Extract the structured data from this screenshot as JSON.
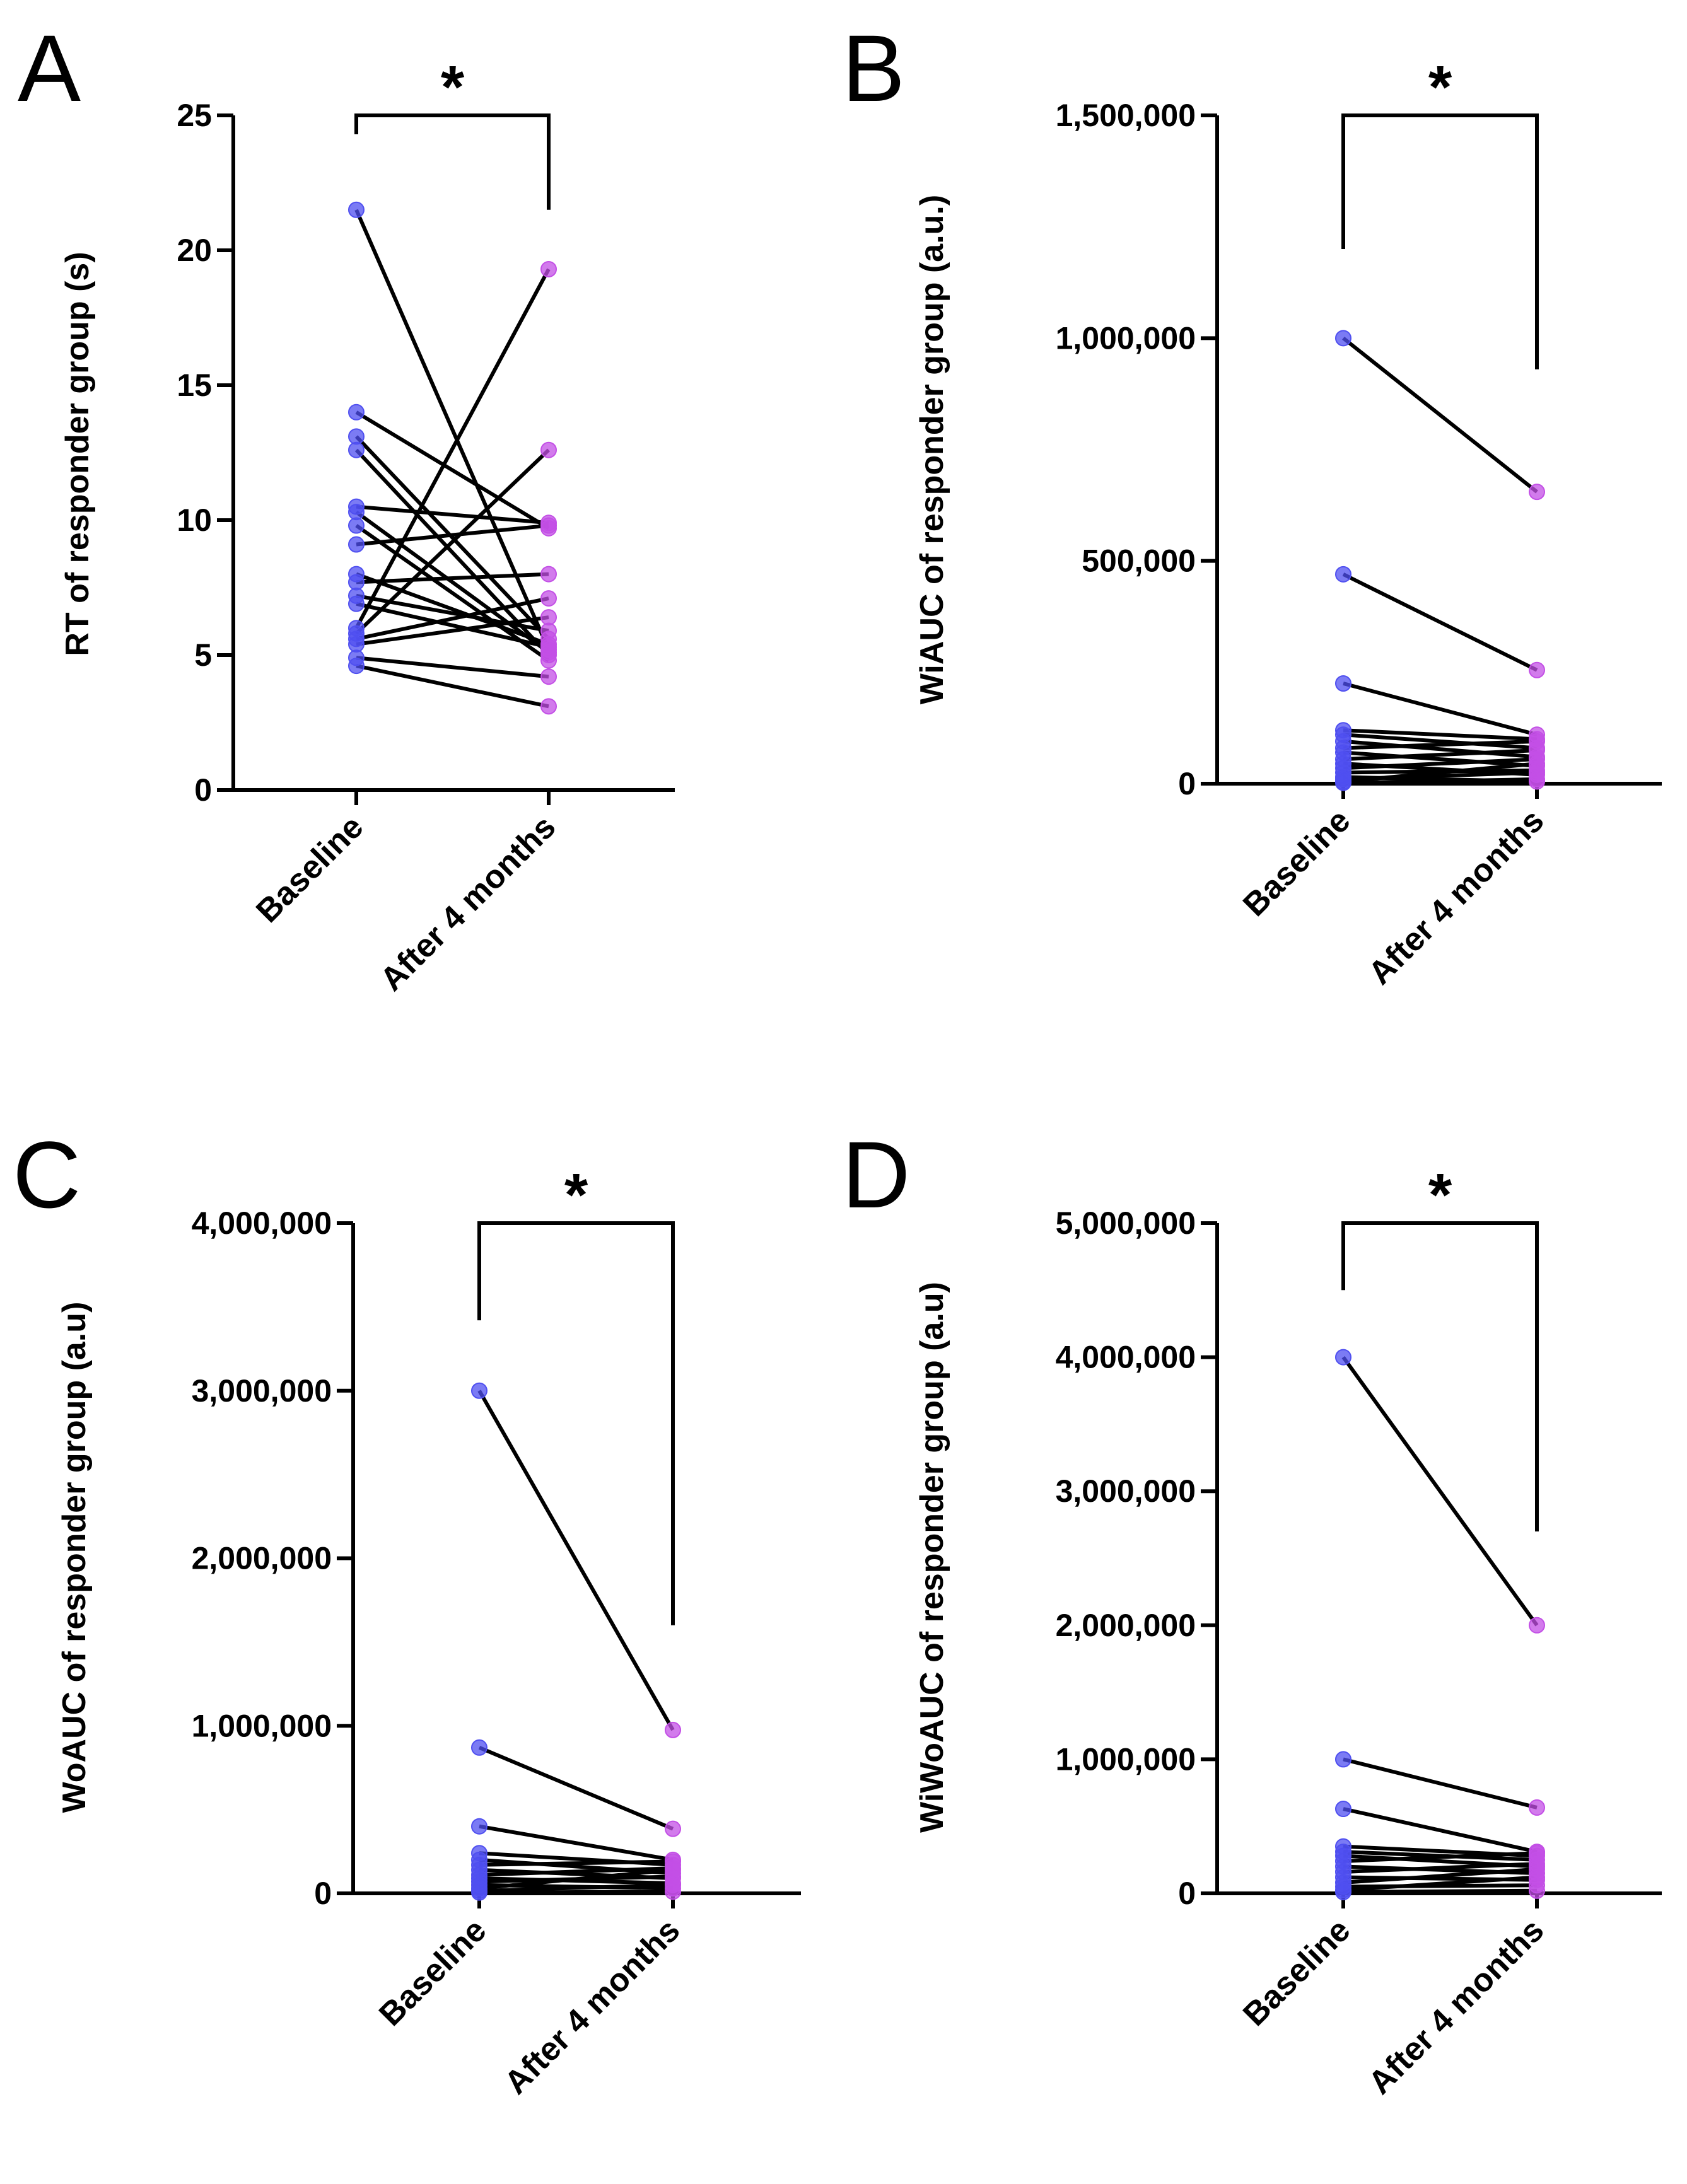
{
  "colors": {
    "baseline": "#4f4ff0",
    "after": "#c34fe6",
    "line": "#000000"
  },
  "chart_data": [
    {
      "type": "line",
      "panel": "A",
      "ylabel": "RT of responder group (s)",
      "categories": [
        "Baseline",
        "After 4 months"
      ],
      "ylim": [
        0,
        25
      ],
      "yticks": [
        0,
        5,
        10,
        15,
        20,
        25
      ],
      "ytick_labels": [
        "0",
        "5",
        "10",
        "15",
        "20",
        "25"
      ],
      "significance": "*",
      "bracket_bottoms": [
        24.3,
        21.5
      ],
      "pairs": [
        [
          21.5,
          5.2
        ],
        [
          14.0,
          9.7
        ],
        [
          13.1,
          5.6
        ],
        [
          12.6,
          5.0
        ],
        [
          10.5,
          9.9
        ],
        [
          10.3,
          5.1
        ],
        [
          9.8,
          4.8
        ],
        [
          9.1,
          9.8
        ],
        [
          8.0,
          5.4
        ],
        [
          7.7,
          8.0
        ],
        [
          7.2,
          5.9
        ],
        [
          6.9,
          5.3
        ],
        [
          6.0,
          19.3
        ],
        [
          5.8,
          12.6
        ],
        [
          5.6,
          7.1
        ],
        [
          5.4,
          6.4
        ],
        [
          4.9,
          4.2
        ],
        [
          4.6,
          3.1
        ]
      ]
    },
    {
      "type": "line",
      "panel": "B",
      "ylabel": "WiAUC of responder group (a.u.)",
      "categories": [
        "Baseline",
        "After 4 months"
      ],
      "ylim": [
        0,
        1500000
      ],
      "yticks": [
        0,
        500000,
        1000000,
        1500000
      ],
      "ytick_labels": [
        "0",
        "500,000",
        "1,000,000",
        "1,500,000"
      ],
      "significance": "*",
      "bracket_bottoms": [
        1200000,
        930000
      ],
      "pairs": [
        [
          1000000,
          655000
        ],
        [
          470000,
          255000
        ],
        [
          225000,
          110000
        ],
        [
          120000,
          100000
        ],
        [
          110000,
          80000
        ],
        [
          95000,
          60000
        ],
        [
          80000,
          95000
        ],
        [
          70000,
          40000
        ],
        [
          55000,
          75000
        ],
        [
          45000,
          20000
        ],
        [
          35000,
          55000
        ],
        [
          25000,
          30000
        ],
        [
          15000,
          5000
        ],
        [
          10000,
          25000
        ],
        [
          5000,
          45000
        ],
        [
          2000,
          10000
        ]
      ]
    },
    {
      "type": "line",
      "panel": "C",
      "ylabel": "WoAUC of responder group (a.u)",
      "categories": [
        "Baseline",
        "After 4 months"
      ],
      "ylim": [
        0,
        4000000
      ],
      "yticks": [
        0,
        1000000,
        2000000,
        3000000,
        4000000
      ],
      "ytick_labels": [
        "0",
        "1,000,000",
        "2,000,000",
        "3,000,000",
        "4,000,000"
      ],
      "significance": "*",
      "bracket_bottoms": [
        3420000,
        1600000
      ],
      "pairs": [
        [
          3000000,
          975000
        ],
        [
          870000,
          385000
        ],
        [
          400000,
          200000
        ],
        [
          240000,
          170000
        ],
        [
          200000,
          120000
        ],
        [
          170000,
          190000
        ],
        [
          140000,
          90000
        ],
        [
          110000,
          150000
        ],
        [
          90000,
          60000
        ],
        [
          70000,
          100000
        ],
        [
          50000,
          30000
        ],
        [
          30000,
          140000
        ],
        [
          15000,
          50000
        ],
        [
          5000,
          10000
        ]
      ]
    },
    {
      "type": "line",
      "panel": "D",
      "ylabel": "WiWoAUC of responder group (a.u)",
      "categories": [
        "Baseline",
        "After 4 months"
      ],
      "ylim": [
        0,
        5000000
      ],
      "yticks": [
        0,
        1000000,
        2000000,
        3000000,
        4000000,
        5000000
      ],
      "ytick_labels": [
        "0",
        "1,000,000",
        "2,000,000",
        "3,000,000",
        "4,000,000",
        "5,000,000"
      ],
      "significance": "*",
      "bracket_bottoms": [
        4500000,
        2700000
      ],
      "pairs": [
        [
          4000000,
          2000000
        ],
        [
          1000000,
          640000
        ],
        [
          630000,
          310000
        ],
        [
          350000,
          280000
        ],
        [
          310000,
          250000
        ],
        [
          280000,
          200000
        ],
        [
          240000,
          300000
        ],
        [
          200000,
          150000
        ],
        [
          160000,
          220000
        ],
        [
          120000,
          100000
        ],
        [
          80000,
          180000
        ],
        [
          50000,
          60000
        ],
        [
          25000,
          120000
        ],
        [
          10000,
          20000
        ]
      ]
    }
  ]
}
